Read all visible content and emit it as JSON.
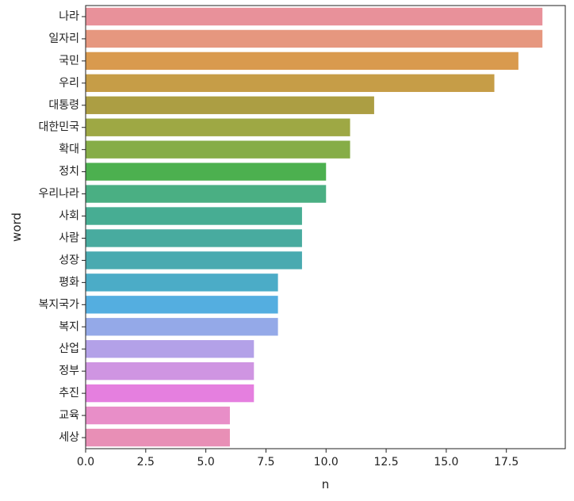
{
  "chart_data": {
    "type": "bar",
    "orientation": "horizontal",
    "xlabel": "n",
    "ylabel": "word",
    "xlim": [
      0,
      19.95
    ],
    "xticks": [
      "0.0",
      "2.5",
      "5.0",
      "7.5",
      "10.0",
      "12.5",
      "15.0",
      "17.5"
    ],
    "grid": false,
    "categories": [
      "나라",
      "일자리",
      "국민",
      "우리",
      "대통령",
      "대한민국",
      "확대",
      "정치",
      "우리나라",
      "사회",
      "사람",
      "성장",
      "평화",
      "복지국가",
      "복지",
      "산업",
      "정부",
      "추진",
      "교육",
      "세상"
    ],
    "values": [
      19,
      19,
      18,
      17,
      12,
      11,
      11,
      10,
      10,
      9,
      9,
      9,
      8,
      8,
      8,
      7,
      7,
      7,
      6,
      6
    ],
    "colors": [
      "#e8919a",
      "#e6977f",
      "#d99a4e",
      "#c69d47",
      "#ac9e43",
      "#9ea844",
      "#86ad47",
      "#4cb04f",
      "#4aaf83",
      "#47ad93",
      "#48ab9f",
      "#49aab0",
      "#4bacc7",
      "#54aee0",
      "#94a9e8",
      "#b3a1e8",
      "#cf95e2",
      "#e57fdf",
      "#e88ec8",
      "#e88fb6"
    ]
  }
}
